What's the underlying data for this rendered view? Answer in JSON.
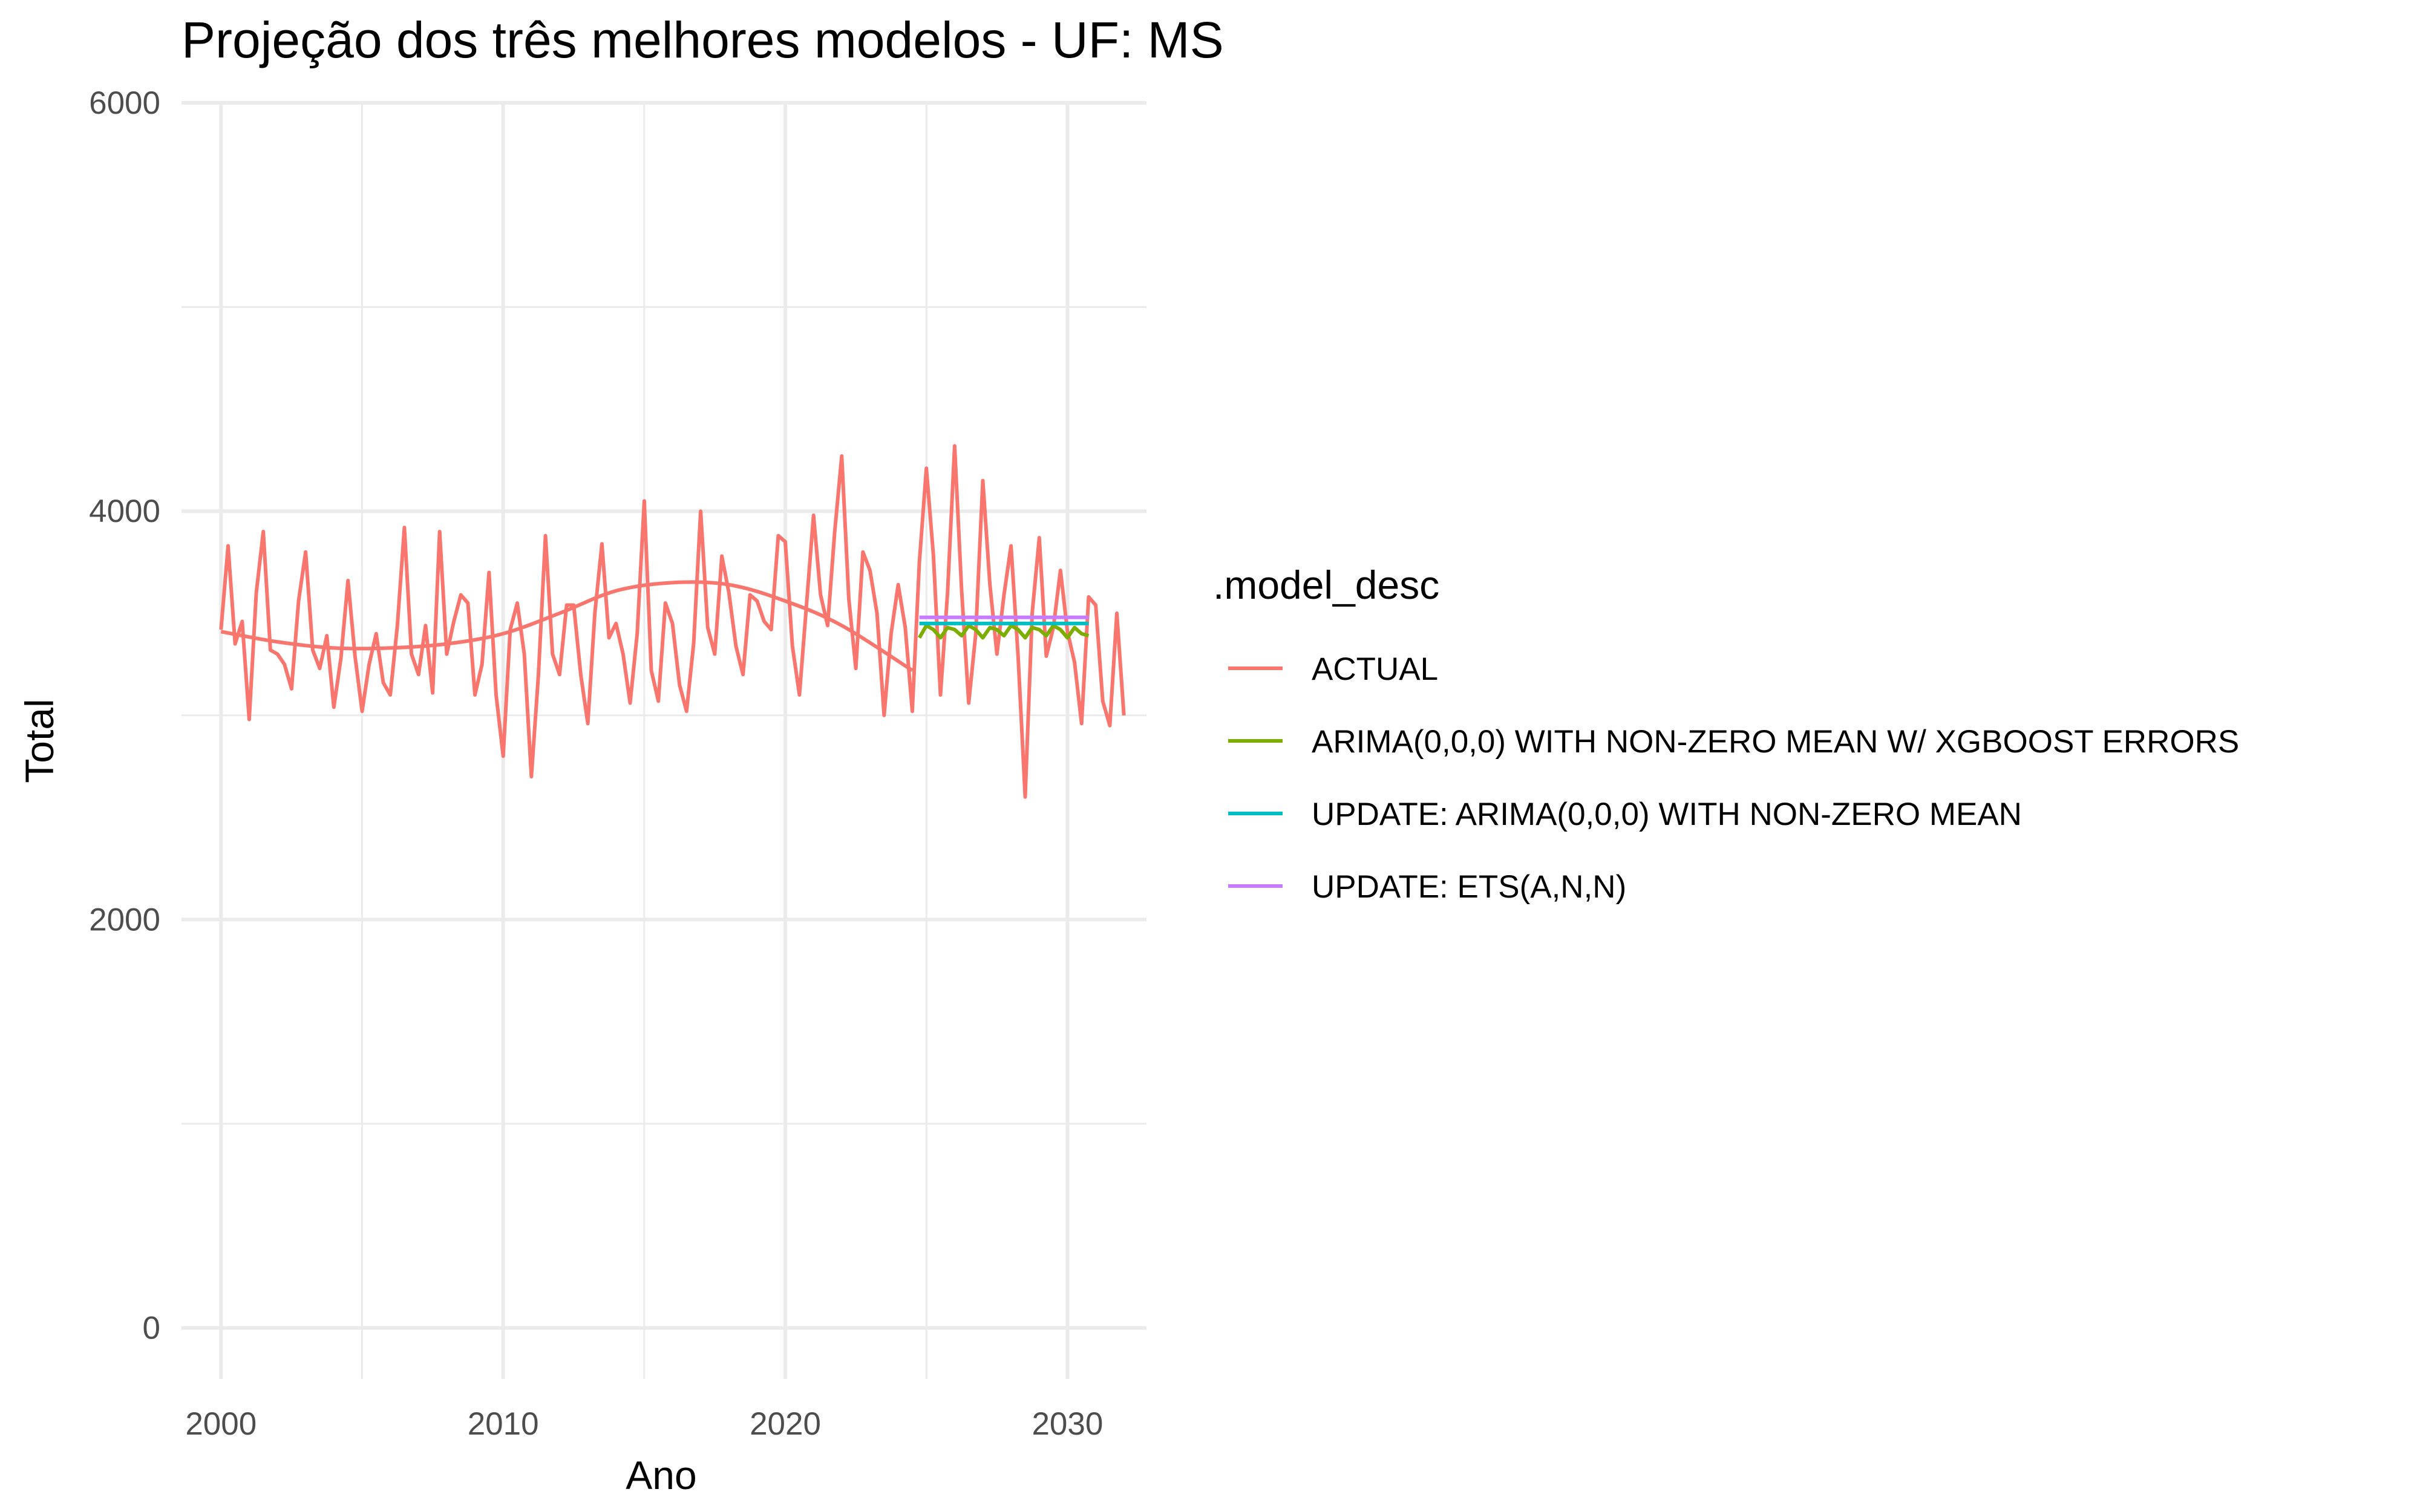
{
  "chart_data": {
    "type": "line",
    "title": "Projeção dos três melhores modelos - UF: MS",
    "xlabel": "Ano",
    "ylabel": "Total",
    "xlim": [
      1998.6,
      2032.8
    ],
    "ylim": [
      -250,
      6000
    ],
    "x_ticks": [
      2000,
      2010,
      2020,
      2030
    ],
    "y_ticks": [
      0,
      2000,
      4000,
      6000
    ],
    "x_minor": [
      2005,
      2015,
      2025
    ],
    "y_minor": [
      1000,
      3000,
      5000
    ],
    "grid": true,
    "legend_title": ".model_desc",
    "legend_position": "right",
    "series": [
      {
        "name": "ACTUAL",
        "color": "#F8766D",
        "x_start": 2000.0,
        "x_step": 0.25,
        "values": [
          3420,
          3830,
          3350,
          3460,
          2980,
          3600,
          3900,
          3320,
          3300,
          3250,
          3130,
          3560,
          3800,
          3320,
          3230,
          3390,
          3040,
          3280,
          3660,
          3290,
          3020,
          3250,
          3400,
          3160,
          3100,
          3440,
          3920,
          3300,
          3200,
          3440,
          3110,
          3900,
          3300,
          3460,
          3590,
          3550,
          3100,
          3250,
          3700,
          3100,
          2800,
          3420,
          3550,
          3300,
          2700,
          3200,
          3880,
          3300,
          3200,
          3540,
          3540,
          3200,
          2960,
          3500,
          3840,
          3380,
          3450,
          3300,
          3060,
          3400,
          4050,
          3220,
          3070,
          3550,
          3450,
          3150,
          3020,
          3350,
          4000,
          3430,
          3300,
          3780,
          3600,
          3340,
          3200,
          3590,
          3560,
          3460,
          3420,
          3880,
          3850,
          3340,
          3100,
          3540,
          3980,
          3590,
          3440,
          3900,
          4270,
          3570,
          3230,
          3800,
          3710,
          3500,
          3000,
          3400,
          3640,
          3430,
          3020,
          3750,
          4210,
          3780,
          3100,
          3600,
          4320,
          3610,
          3060,
          3400,
          4150,
          3640,
          3300,
          3590,
          3830,
          3290,
          2600,
          3500,
          3870,
          3290,
          3430,
          3710,
          3410,
          3260,
          2960,
          3580,
          3540,
          3070,
          2950,
          3500,
          3000
        ]
      },
      {
        "name": "ARIMA(0,0,0) WITH NON-ZERO MEAN W/ XGBOOST ERRORS",
        "color": "#7CAE00",
        "x_start": 2024.75,
        "x_step": 0.25,
        "values": [
          3380,
          3440,
          3420,
          3380,
          3430,
          3420,
          3390,
          3440,
          3420,
          3380,
          3430,
          3420,
          3390,
          3440,
          3420,
          3380,
          3430,
          3420,
          3390,
          3440,
          3420,
          3380,
          3430,
          3400,
          3390
        ]
      },
      {
        "name": "UPDATE: ARIMA(0,0,0) WITH NON-ZERO MEAN",
        "color": "#00BFC4",
        "x_start": 2024.75,
        "x_step": 0.25,
        "values": [
          3450,
          3450,
          3450,
          3450,
          3450,
          3450,
          3450,
          3450,
          3450,
          3450,
          3450,
          3450,
          3450,
          3450,
          3450,
          3450,
          3450,
          3450,
          3450,
          3450,
          3450,
          3450,
          3450,
          3450,
          3450
        ]
      },
      {
        "name": "UPDATE: ETS(A,N,N)",
        "color": "#C77CFF",
        "x_start": 2024.75,
        "x_step": 0.25,
        "values": [
          3480,
          3480,
          3480,
          3480,
          3480,
          3480,
          3480,
          3480,
          3480,
          3480,
          3480,
          3480,
          3480,
          3480,
          3480,
          3480,
          3480,
          3480,
          3480,
          3480,
          3480,
          3480,
          3480,
          3480,
          3480
        ]
      }
    ],
    "trend": {
      "name": "ACTUAL",
      "color": "#F8766D",
      "x": [
        2000,
        2002,
        2004,
        2006,
        2008,
        2010,
        2012,
        2014,
        2016,
        2018,
        2020,
        2022,
        2024.5
      ],
      "y": [
        3410,
        3360,
        3330,
        3330,
        3350,
        3400,
        3500,
        3610,
        3650,
        3640,
        3560,
        3440,
        3220
      ]
    }
  }
}
